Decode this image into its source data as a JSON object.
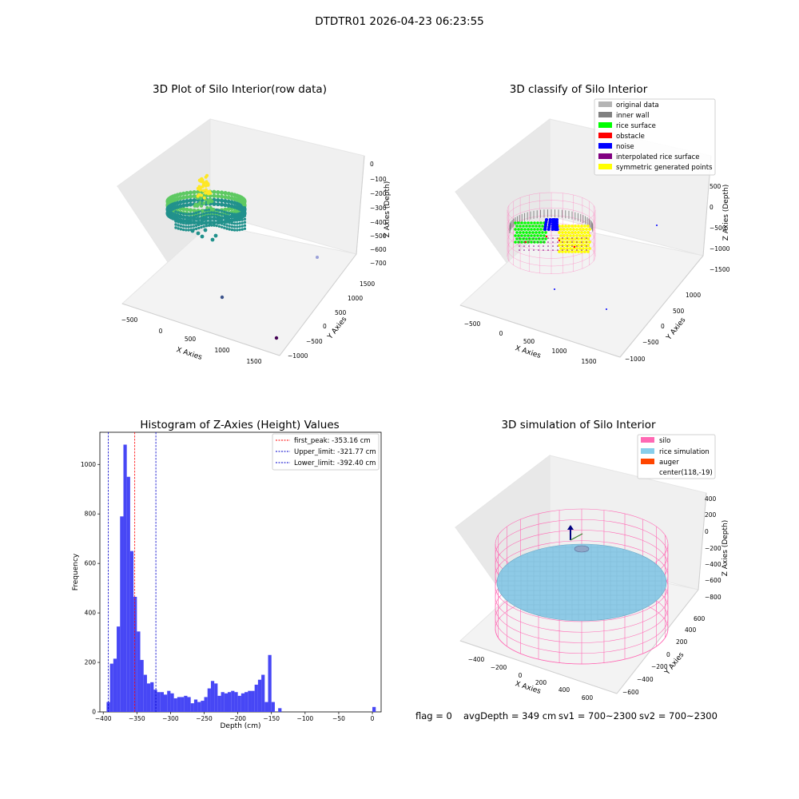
{
  "suptitle": "DTDTR01 2026-04-23 06:23:55",
  "status": {
    "flag": "flag = 0",
    "avg_depth": "avgDepth = 349 cm",
    "sv1": "sv1 = 700~2300",
    "sv2": "sv2 = 700~2300"
  },
  "chart_data": [
    {
      "type": "scatter",
      "title": "3D Plot of Silo Interior(row data)",
      "xlabel": "X Axies",
      "ylabel": "Y Axies",
      "zlabel": "Z Axies (Depth)",
      "x_ticks": [
        "−500",
        "0",
        "500",
        "1000",
        "1500"
      ],
      "y_ticks": [
        "−1000",
        "−500",
        "0",
        "500",
        "1000",
        "1500"
      ],
      "z_ticks": [
        "0",
        "−100",
        "−200",
        "−300",
        "−400",
        "−500",
        "−600",
        "−700"
      ],
      "colormap": [
        "#440154",
        "#3b528b",
        "#21918c",
        "#5ec962",
        "#fde725"
      ]
    },
    {
      "type": "scatter",
      "title": "3D classify of Silo Interior",
      "xlabel": "X Axies",
      "ylabel": "Y Axies",
      "zlabel": "Z Axies (Depth)",
      "x_ticks": [
        "−500",
        "0",
        "500",
        "1000",
        "1500"
      ],
      "y_ticks": [
        "−1000",
        "−500",
        "0",
        "500",
        "1000"
      ],
      "z_ticks": [
        "500",
        "0",
        "−500",
        "−1000",
        "−1500"
      ],
      "legend": [
        {
          "label": "original data",
          "color": "#b4b4b4"
        },
        {
          "label": "inner wall",
          "color": "#808080"
        },
        {
          "label": "rice surface",
          "color": "#00ff00"
        },
        {
          "label": "obstacle",
          "color": "#ff0000"
        },
        {
          "label": "noise",
          "color": "#0000ff"
        },
        {
          "label": "interpolated rice surface",
          "color": "#800080"
        },
        {
          "label": "symmetric generated points",
          "color": "#ffff00"
        }
      ]
    },
    {
      "type": "bar",
      "title": "Histogram of Z-Axies (Height) Values",
      "xlabel": "Depth (cm)",
      "ylabel": "Frequency",
      "xlim": [
        -405,
        13
      ],
      "ylim": [
        0,
        1130
      ],
      "x_ticks": [
        -400,
        -350,
        -300,
        -250,
        -200,
        -150,
        -100,
        -50,
        0
      ],
      "y_ticks": [
        0,
        200,
        400,
        600,
        800,
        1000
      ],
      "bin_width": 5,
      "bin_starts": [
        -395,
        -390,
        -385,
        -380,
        -375,
        -370,
        -365,
        -360,
        -355,
        -350,
        -345,
        -340,
        -335,
        -330,
        -325,
        -320,
        -315,
        -310,
        -305,
        -300,
        -295,
        -290,
        -285,
        -280,
        -275,
        -270,
        -265,
        -260,
        -255,
        -250,
        -245,
        -240,
        -235,
        -230,
        -225,
        -220,
        -215,
        -210,
        -205,
        -200,
        -195,
        -190,
        -185,
        -180,
        -175,
        -170,
        -165,
        -160,
        -155,
        -150,
        -145,
        -140,
        -135,
        -130,
        -125,
        -120,
        -115,
        -110,
        -105,
        -100,
        -95,
        -90,
        -85,
        -80,
        -75,
        -70,
        -65,
        -60,
        -55,
        -50,
        -45,
        -40,
        -35,
        -30,
        -25,
        -20,
        -15,
        -10,
        -5,
        0
      ],
      "counts": [
        40,
        195,
        215,
        345,
        790,
        1080,
        950,
        650,
        465,
        325,
        210,
        150,
        115,
        120,
        90,
        80,
        80,
        70,
        85,
        75,
        55,
        60,
        60,
        65,
        60,
        35,
        50,
        40,
        45,
        60,
        95,
        125,
        115,
        65,
        80,
        75,
        80,
        85,
        80,
        65,
        75,
        80,
        85,
        85,
        110,
        130,
        150,
        40,
        230,
        40,
        0,
        15,
        0,
        0,
        0,
        0,
        0,
        0,
        0,
        0,
        0,
        0,
        0,
        0,
        0,
        0,
        0,
        0,
        0,
        0,
        0,
        0,
        0,
        0,
        0,
        0,
        0,
        0,
        0,
        20
      ],
      "bar_color": "#4747f5",
      "lines": [
        {
          "label": "first_peak: -353.16 cm",
          "x": -353.16,
          "color": "#ff0000"
        },
        {
          "label": "Upper_limit: -321.77 cm",
          "x": -321.77,
          "color": "#0000cc"
        },
        {
          "label": "Lower_limit: -392.40 cm",
          "x": -392.4,
          "color": "#0000cc"
        }
      ]
    },
    {
      "type": "scatter",
      "title": "3D simulation of Silo Interior",
      "xlabel": "X Axies",
      "ylabel": "Y Axies",
      "zlabel": "Z Axies (Depth)",
      "x_ticks": [
        "−400",
        "−200",
        "0",
        "200",
        "400",
        "600"
      ],
      "y_ticks": [
        "−600",
        "−400",
        "−200",
        "0",
        "200",
        "400",
        "600"
      ],
      "z_ticks": [
        "400",
        "200",
        "0",
        "−200",
        "−400",
        "−600",
        "−800"
      ],
      "legend": [
        {
          "label": "silo",
          "color": "#ff69b4"
        },
        {
          "label": "rice simulation",
          "color": "#87ceeb"
        },
        {
          "label": "auger",
          "color": "#ff4500"
        },
        {
          "label": "center(118,-19)",
          "color": ""
        }
      ]
    }
  ]
}
